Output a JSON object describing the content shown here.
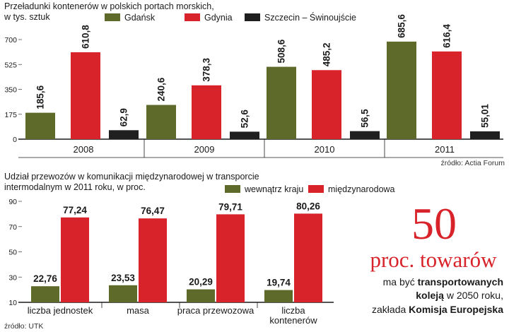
{
  "colors": {
    "gdansk": "#5e6a2a",
    "gdynia": "#d8232a",
    "szczecin": "#1f1f1f",
    "kraj": "#5e6a2a",
    "miedzynarodowa": "#d8232a",
    "accent": "#d8232a"
  },
  "chart_data": [
    {
      "type": "bar",
      "title": "Przeładunki kontenerów w polskich portach morskich,\nw tys. sztuk",
      "categories": [
        "2008",
        "2009",
        "2010",
        "2011"
      ],
      "series": [
        {
          "name": "Gdańsk",
          "values": [
            185.6,
            240.6,
            508.6,
            685.6
          ],
          "labels": [
            "185,6",
            "240,6",
            "508,6",
            "685,6"
          ]
        },
        {
          "name": "Gdynia",
          "values": [
            610.8,
            378.3,
            485.2,
            616.4
          ],
          "labels": [
            "610,8",
            "378,3",
            "485,2",
            "616,4"
          ]
        },
        {
          "name": "Szczecin – Świnoujście",
          "values": [
            62.9,
            52.6,
            56.5,
            55.01
          ],
          "labels": [
            "62,9",
            "52,6",
            "56,5",
            "55,01"
          ]
        }
      ],
      "yticks": [
        0,
        175,
        350,
        525,
        700
      ],
      "ylim": [
        0,
        700
      ],
      "xlabel": "",
      "ylabel": "",
      "grid": false,
      "legend": "top",
      "source": "źródło: Actia Forum"
    },
    {
      "type": "bar",
      "title": "Udział przewozów w komunikacji międzynarodowej w transporcie\nintermodalnym w 2011 roku, w proc.",
      "categories": [
        "liczba jednostek",
        "masa",
        "praca przewozowa",
        "liczba\nkontenerów"
      ],
      "series": [
        {
          "name": "wewnątrz kraju",
          "values": [
            22.76,
            23.53,
            20.29,
            19.74
          ],
          "labels": [
            "22,76",
            "23,53",
            "20,29",
            "19,74"
          ]
        },
        {
          "name": "międzynarodowa",
          "values": [
            77.24,
            76.47,
            79.71,
            80.26
          ],
          "labels": [
            "77,24",
            "76,47",
            "79,71",
            "80,26"
          ]
        }
      ],
      "yticks": [
        10,
        30,
        50,
        70,
        90
      ],
      "ylim": [
        10,
        90
      ],
      "xlabel": "",
      "ylabel": "",
      "grid": false,
      "legend": "top",
      "source": "źródło: UTK"
    }
  ],
  "callout": {
    "big_number": 50,
    "unit": "proc. towarów",
    "line1_pre": "ma być ",
    "line1_bold": "transportowanych",
    "line2_bold": "koleją",
    "line2_post": " w 2050  roku,",
    "line3_pre": "zakłada ",
    "line3_bold": "Komisja Europejska"
  }
}
